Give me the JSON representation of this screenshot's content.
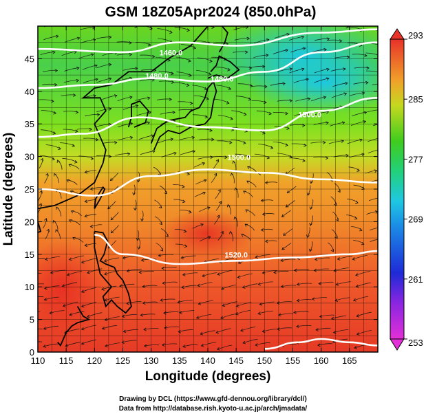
{
  "chart_data": {
    "type": "heatmap",
    "title": "GSM 18Z05Apr2024 (850.0hPa)",
    "xlabel": "Longitude (degrees)",
    "ylabel": "Latitude  (degrees)",
    "xlim": [
      110,
      170
    ],
    "ylim": [
      0,
      50
    ],
    "x_ticks": [
      110,
      115,
      120,
      125,
      130,
      135,
      140,
      145,
      150,
      155,
      160,
      165
    ],
    "y_ticks": [
      0,
      5,
      10,
      15,
      20,
      25,
      30,
      35,
      40,
      45
    ],
    "grid": true,
    "colorbar": {
      "range": [
        253,
        293
      ],
      "ticks": [
        253,
        261,
        269,
        277,
        285,
        293
      ],
      "placement": "right"
    },
    "contours": [
      {
        "label": "1460.0",
        "lat_at_lon": [
          [
            110,
            46.5
          ],
          [
            125,
            46
          ],
          [
            135,
            47.5
          ],
          [
            145,
            47
          ],
          [
            160,
            49
          ],
          [
            170,
            49.5
          ]
        ]
      },
      {
        "label": "1480.0",
        "lat_at_lon": [
          [
            110,
            40.5
          ],
          [
            120,
            41
          ],
          [
            130,
            42
          ],
          [
            140,
            41.5
          ],
          [
            150,
            43
          ],
          [
            160,
            46
          ],
          [
            170,
            47.5
          ]
        ]
      },
      {
        "label": "1500.0",
        "lat_at_lon": [
          [
            110,
            33
          ],
          [
            118,
            33.5
          ],
          [
            128,
            36
          ],
          [
            140,
            34.5
          ],
          [
            150,
            34
          ],
          [
            160,
            37
          ],
          [
            170,
            39
          ]
        ]
      },
      {
        "label": "1520.0",
        "lat_at_lon": [
          [
            110,
            25
          ],
          [
            120,
            24
          ],
          [
            130,
            27
          ],
          [
            140,
            28
          ],
          [
            150,
            27.5
          ],
          [
            160,
            26.5
          ],
          [
            170,
            26
          ]
        ]
      },
      {
        "label": "1520.0",
        "lat_at_lon": [
          [
            120,
            18
          ],
          [
            125,
            15
          ],
          [
            135,
            13.5
          ],
          [
            145,
            14
          ],
          [
            155,
            14.5
          ],
          [
            165,
            15
          ],
          [
            170,
            15.5
          ]
        ]
      },
      {
        "label": "",
        "lat_at_lon": [
          [
            150,
            0.5
          ],
          [
            156,
            1.5
          ],
          [
            160,
            2
          ],
          [
            165,
            1.5
          ],
          [
            170,
            1
          ]
        ]
      }
    ],
    "contour_labels": [
      {
        "text": "1460.0",
        "lon": 133.5,
        "lat": 45.5
      },
      {
        "text": "1480.0",
        "lon": 131,
        "lat": 42
      },
      {
        "text": "1480.0",
        "lon": 142.5,
        "lat": 41.5
      },
      {
        "text": "1500.0",
        "lon": 158,
        "lat": 36
      },
      {
        "text": "1500.0",
        "lon": 145.5,
        "lat": 29.5
      },
      {
        "text": "1520.0",
        "lon": 145,
        "lat": 14.5
      }
    ]
  },
  "credits": {
    "line1": "Drawing by DCL (https://www.gfd-dennou.org/library/dcl/)",
    "line2": "Data from http://database.rish.kyoto-u.ac.jp/arch/jmadata/"
  }
}
